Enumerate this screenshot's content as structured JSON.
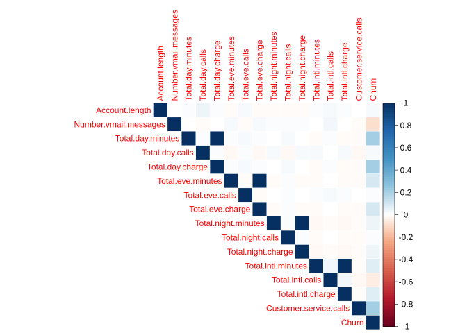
{
  "chart_data": {
    "type": "heatmap",
    "variables": [
      "Account.length",
      "Number.vmail.messages",
      "Total.day.minutes",
      "Total.day.calls",
      "Total.day.charge",
      "Total.eve.minutes",
      "Total.eve.calls",
      "Total.eve.charge",
      "Total.night.minutes",
      "Total.night.calls",
      "Total.night.charge",
      "Total.intl.minutes",
      "Total.intl.calls",
      "Total.intl.charge",
      "Customer.service.calls",
      "Churn"
    ],
    "matrix": [
      [
        1.0,
        0.0,
        0.01,
        0.04,
        0.01,
        -0.01,
        0.02,
        -0.01,
        -0.01,
        -0.01,
        -0.01,
        0.01,
        0.02,
        0.01,
        0.0,
        0.02
      ],
      [
        null,
        1.0,
        0.0,
        -0.01,
        0.0,
        0.02,
        -0.01,
        0.02,
        0.01,
        0.01,
        0.01,
        0.0,
        0.03,
        0.0,
        -0.01,
        -0.09
      ],
      [
        null,
        null,
        1.0,
        0.01,
        1.0,
        0.01,
        0.02,
        0.01,
        0.0,
        0.02,
        0.0,
        -0.01,
        0.01,
        -0.01,
        -0.01,
        0.21
      ],
      [
        null,
        null,
        null,
        1.0,
        0.01,
        -0.02,
        0.01,
        -0.02,
        0.02,
        -0.02,
        0.02,
        0.02,
        0.0,
        0.02,
        -0.02,
        0.02
      ],
      [
        null,
        null,
        null,
        null,
        1.0,
        0.01,
        0.02,
        0.01,
        0.0,
        0.02,
        0.0,
        -0.01,
        0.01,
        -0.01,
        -0.01,
        0.21
      ],
      [
        null,
        null,
        null,
        null,
        null,
        1.0,
        -0.01,
        1.0,
        -0.01,
        0.01,
        -0.01,
        -0.01,
        0.0,
        -0.01,
        -0.01,
        0.09
      ],
      [
        null,
        null,
        null,
        null,
        null,
        null,
        1.0,
        -0.01,
        -0.0,
        0.01,
        -0.0,
        0.01,
        0.02,
        0.01,
        0.0,
        0.01
      ],
      [
        null,
        null,
        null,
        null,
        null,
        null,
        null,
        1.0,
        -0.01,
        0.01,
        -0.01,
        -0.01,
        0.0,
        -0.01,
        -0.01,
        0.09
      ],
      [
        null,
        null,
        null,
        null,
        null,
        null,
        null,
        null,
        1.0,
        0.01,
        1.0,
        -0.02,
        -0.01,
        -0.02,
        -0.01,
        0.04
      ],
      [
        null,
        null,
        null,
        null,
        null,
        null,
        null,
        null,
        null,
        1.0,
        0.01,
        -0.01,
        0.0,
        -0.01,
        -0.01,
        0.01
      ],
      [
        null,
        null,
        null,
        null,
        null,
        null,
        null,
        null,
        null,
        null,
        1.0,
        -0.02,
        -0.01,
        -0.02,
        -0.01,
        0.04
      ],
      [
        null,
        null,
        null,
        null,
        null,
        null,
        null,
        null,
        null,
        null,
        null,
        1.0,
        0.03,
        1.0,
        -0.01,
        0.07
      ],
      [
        null,
        null,
        null,
        null,
        null,
        null,
        null,
        null,
        null,
        null,
        null,
        null,
        1.0,
        0.03,
        -0.02,
        -0.05
      ],
      [
        null,
        null,
        null,
        null,
        null,
        null,
        null,
        null,
        null,
        null,
        null,
        null,
        null,
        1.0,
        -0.01,
        0.07
      ],
      [
        null,
        null,
        null,
        null,
        null,
        null,
        null,
        null,
        null,
        null,
        null,
        null,
        null,
        null,
        1.0,
        0.21
      ],
      [
        null,
        null,
        null,
        null,
        null,
        null,
        null,
        null,
        null,
        null,
        null,
        null,
        null,
        null,
        null,
        1.0
      ]
    ],
    "colorbar": {
      "ticks": [
        "1",
        "0.8",
        "0.6",
        "0.4",
        "0.2",
        "0",
        "-0.2",
        "-0.4",
        "-0.6",
        "-0.8",
        "-1"
      ],
      "range": [
        -1,
        1
      ]
    },
    "colors": {
      "label": "#ff0000",
      "positive": "#053061",
      "negative": "#67001f",
      "neutral": "#ffffff",
      "tick_text": "#000000"
    }
  }
}
